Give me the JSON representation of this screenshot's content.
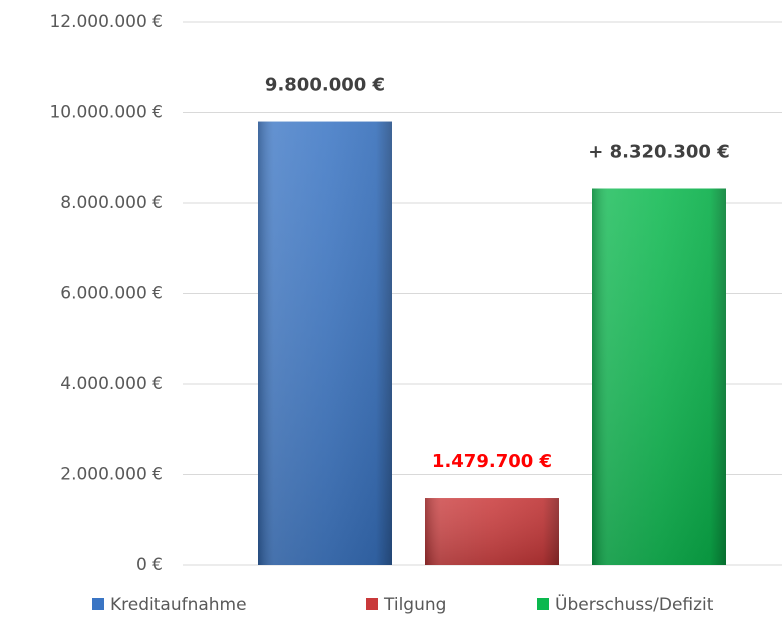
{
  "chart_data": {
    "type": "bar",
    "series": [
      {
        "name": "Kreditaufnahme",
        "color": "#3a75c4",
        "label_color": "#404040",
        "values": [
          9800000
        ],
        "value_labels": [
          "9.800.000 €"
        ]
      },
      {
        "name": "Tilgung",
        "color": "#c9393a",
        "label_color": "#ff0000",
        "values": [
          1479700
        ],
        "value_labels": [
          "1.479.700 €"
        ]
      },
      {
        "name": "Überschuss/Defizit",
        "color": "#0bb84e",
        "label_color": "#404040",
        "values": [
          8320300
        ],
        "value_labels": [
          "+ 8.320.300 €"
        ]
      }
    ],
    "ylim": [
      0,
      12000000
    ],
    "yticks": [
      {
        "value": 0,
        "label": "0 €"
      },
      {
        "value": 2000000,
        "label": "2.000.000 €"
      },
      {
        "value": 4000000,
        "label": "4.000.000 €"
      },
      {
        "value": 6000000,
        "label": "6.000.000 €"
      },
      {
        "value": 8000000,
        "label": "8.000.000 €"
      },
      {
        "value": 10000000,
        "label": "10.000.000 €"
      },
      {
        "value": 12000000,
        "label": "12.000.000 €"
      }
    ],
    "grid": true,
    "legend": "bottom"
  }
}
